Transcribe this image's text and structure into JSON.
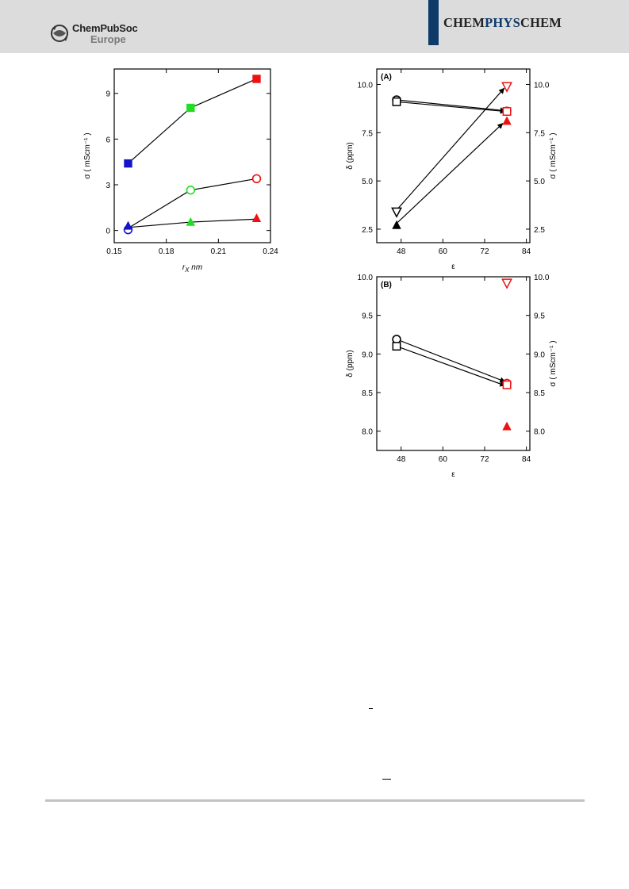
{
  "header": {
    "publisher_name": "ChemPubSoc",
    "publisher_region": "Europe",
    "journal_left": "CHEM",
    "journal_mid": "PHYS",
    "journal_right": "CHEM",
    "colors": {
      "header_bg": "#dcdcdc",
      "accent": "#0e3a6a"
    }
  },
  "chart_data": [
    {
      "type": "scatter",
      "xlabel": "r_X nm",
      "ylabel": "σ ( mScm⁻¹ )",
      "xlim": [
        0.15,
        0.24
      ],
      "ylim": [
        -0.8,
        10.6
      ],
      "xticks": [
        "0.15",
        "0.18",
        "0.21",
        "0.24"
      ],
      "yticks": [
        "0",
        "3",
        "6",
        "9"
      ],
      "series": [
        {
          "marker": "square",
          "color": "#ee1111",
          "points": [
            [
              0.158,
              4.4,
              "#1414c8"
            ],
            [
              0.194,
              8.05,
              "#22dd22"
            ],
            [
              0.232,
              9.95,
              "#ee1111"
            ]
          ]
        },
        {
          "marker": "circle-open",
          "color": "#ee1111",
          "points": [
            [
              0.158,
              0.05,
              "#1414c8"
            ],
            [
              0.194,
              2.65,
              "#22dd22"
            ],
            [
              0.232,
              3.4,
              "#ee1111"
            ]
          ]
        },
        {
          "marker": "triangle",
          "color": "#ee1111",
          "points": [
            [
              0.158,
              0.3,
              "#1414c8"
            ],
            [
              0.194,
              0.55,
              "#22dd22"
            ],
            [
              0.232,
              0.8,
              "#ee1111"
            ]
          ]
        }
      ],
      "connectors": [
        [
          [
            0.158,
            4.4
          ],
          [
            0.194,
            8.05
          ],
          [
            0.232,
            9.95
          ]
        ],
        [
          [
            0.158,
            0.15
          ],
          [
            0.194,
            2.65
          ],
          [
            0.232,
            3.4
          ]
        ],
        [
          [
            0.158,
            0.2
          ],
          [
            0.194,
            0.55
          ],
          [
            0.232,
            0.75
          ]
        ]
      ],
      "grid": false
    },
    {
      "type": "scatter",
      "panel_label": "(A)",
      "xlabel": "ε",
      "ylabel": "δ (ppm)",
      "y2label": "σ ( mScm⁻¹ )",
      "xlim": [
        41,
        85
      ],
      "ylim": [
        1.8,
        10.8
      ],
      "xticks": [
        "48",
        "60",
        "72",
        "84"
      ],
      "yticks": [
        "2.5",
        "5.0",
        "7.5",
        "10.0"
      ],
      "y2ticks": [
        "2.5",
        "5.0",
        "7.5",
        "10.0"
      ],
      "series": [
        {
          "name_axis": "left",
          "marker": "circle-open",
          "points": [
            [
              46.7,
              9.2,
              "#000000"
            ],
            [
              78.4,
              8.62,
              "#ee1111"
            ]
          ]
        },
        {
          "name_axis": "left",
          "marker": "square-open",
          "points": [
            [
              46.7,
              9.1,
              "#000000"
            ],
            [
              78.4,
              8.6,
              "#ee1111"
            ]
          ]
        },
        {
          "name_axis": "right",
          "marker": "triangle-down-open",
          "points": [
            [
              46.7,
              3.4,
              "#000000"
            ],
            [
              78.4,
              9.9,
              "#ee1111"
            ]
          ]
        },
        {
          "name_axis": "right",
          "marker": "triangle",
          "points": [
            [
              46.7,
              2.7,
              "#000000"
            ],
            [
              78.4,
              8.1,
              "#ee1111"
            ]
          ]
        }
      ],
      "arrows": [
        [
          [
            46.7,
            9.2
          ],
          [
            78.0,
            8.64
          ]
        ],
        [
          [
            46.7,
            9.1
          ],
          [
            78.0,
            8.6
          ]
        ],
        [
          [
            47.0,
            3.55
          ],
          [
            77.6,
            9.8
          ]
        ],
        [
          [
            47.0,
            2.85
          ],
          [
            77.2,
            7.98
          ]
        ]
      ],
      "grid": false
    },
    {
      "type": "scatter",
      "panel_label": "(B)",
      "xlabel": "ε",
      "ylabel": "δ (ppm)",
      "y2label": "σ ( mScm⁻¹ )",
      "xlim": [
        41,
        85
      ],
      "ylim": [
        7.75,
        10.0
      ],
      "xticks": [
        "48",
        "60",
        "72",
        "84"
      ],
      "yticks": [
        "8.0",
        "8.5",
        "9.0",
        "9.5",
        "10.0"
      ],
      "y2ticks": [
        "8.0",
        "8.5",
        "9.0",
        "9.5",
        "10.0"
      ],
      "series": [
        {
          "name_axis": "left",
          "marker": "circle-open",
          "points": [
            [
              46.7,
              9.19,
              "#000000"
            ],
            [
              78.4,
              8.62,
              "#ee1111"
            ]
          ]
        },
        {
          "name_axis": "left",
          "marker": "square-open",
          "points": [
            [
              46.7,
              9.1,
              "#000000"
            ],
            [
              78.4,
              8.6,
              "#ee1111"
            ]
          ]
        },
        {
          "name_axis": "right",
          "marker": "triangle-down-open",
          "points": [
            [
              78.4,
              9.92,
              "#ee1111"
            ]
          ]
        },
        {
          "name_axis": "right",
          "marker": "triangle",
          "points": [
            [
              78.4,
              8.06,
              "#ee1111"
            ]
          ]
        }
      ],
      "arrows": [
        [
          [
            46.7,
            9.19
          ],
          [
            77.9,
            8.64
          ]
        ],
        [
          [
            46.7,
            9.1
          ],
          [
            77.9,
            8.59
          ]
        ]
      ],
      "grid": false
    }
  ]
}
